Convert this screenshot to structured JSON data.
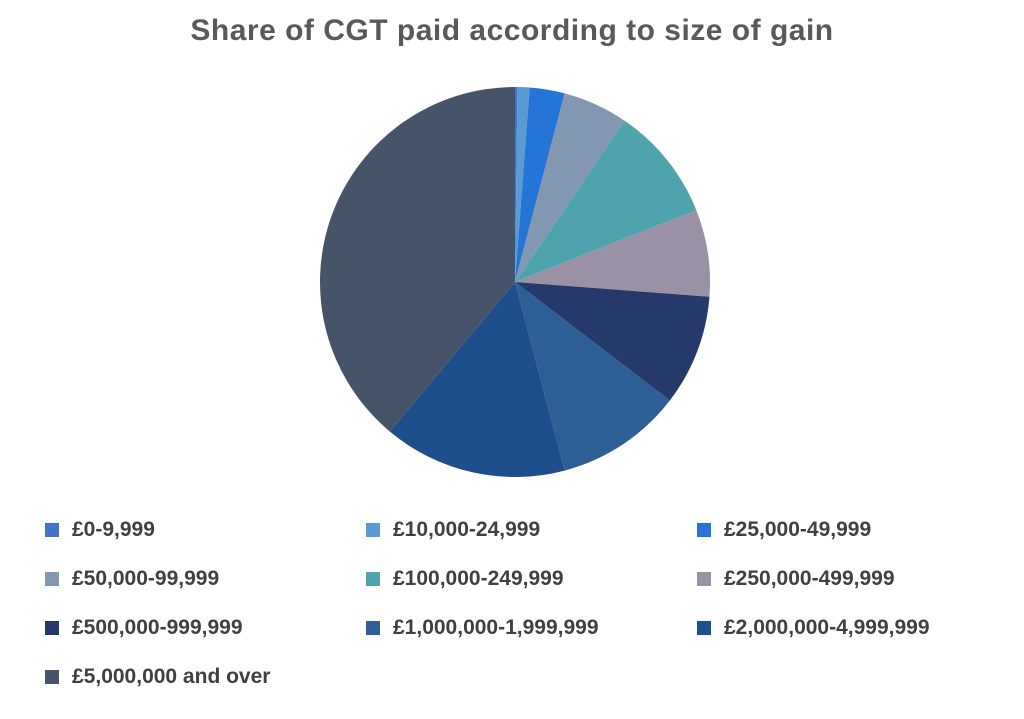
{
  "title": "Share of CGT paid according to size of gain",
  "colors": {
    "background": "#ffffff",
    "title_text": "#595959",
    "legend_text": "#404040"
  },
  "chart_data": {
    "type": "pie",
    "title": "Share of CGT paid according to size of gain",
    "categories": [
      "£0-9,999",
      "£10,000-24,999",
      "£25,000-49,999",
      "£50,000-99,999",
      "£100,000-249,999",
      "£250,000-499,999",
      "£500,000-999,999",
      "£1,000,000-1,999,999",
      "£2,000,000-4,999,999",
      "£5,000,000 and over"
    ],
    "values": [
      0.2,
      1.0,
      2.9,
      5.4,
      9.5,
      7.2,
      9.2,
      10.5,
      15.2,
      38.9
    ],
    "unit": "percent share of CGT paid",
    "slice_colors": [
      "#4472C4",
      "#5B9BD5",
      "#2575D8",
      "#8497B0",
      "#4FA3AC",
      "#9A92A4",
      "#253A6A",
      "#2D5F96",
      "#1F4E8C",
      "#455469"
    ],
    "start_angle_deg": 0,
    "direction": "clockwise",
    "legend_position": "bottom",
    "legend_columns": 3,
    "grid": false,
    "data_labels": false
  }
}
